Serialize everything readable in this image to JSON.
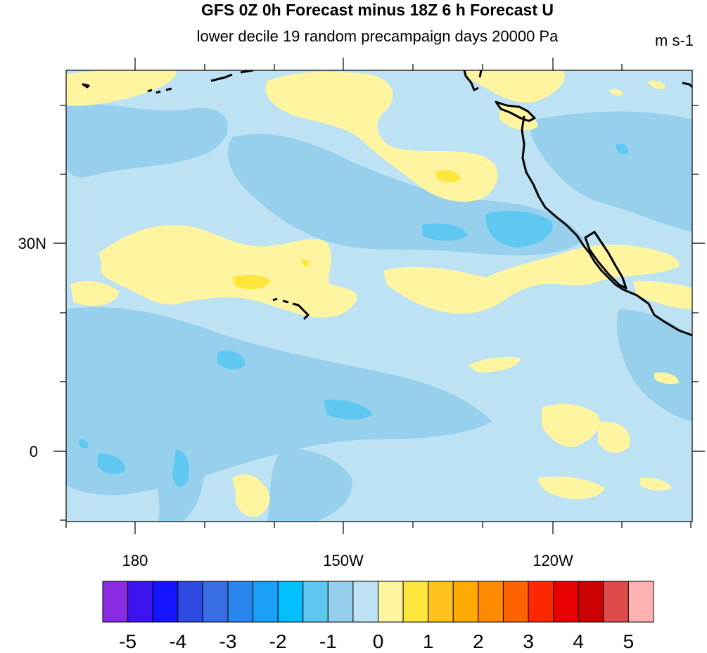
{
  "title": "GFS 0Z 0h Forecast minus 18Z 6 h Forecast U",
  "subtitle": "lower decile 19 random precampaign days 20000 Pa",
  "units": "m s-1",
  "map": {
    "lat_labels": [
      "30N",
      "0"
    ],
    "lon_labels": [
      "180",
      "150W",
      "120W"
    ]
  },
  "colorbar": {
    "labels": [
      "-5",
      "-4",
      "-3",
      "-2",
      "-1",
      "0",
      "1",
      "2",
      "3",
      "4",
      "5"
    ],
    "colors": [
      "#8a2be2",
      "#3c14f0",
      "#1414ff",
      "#2d4be1",
      "#3a6ee6",
      "#2a87f0",
      "#1ba0f7",
      "#00bfff",
      "#5ec8f0",
      "#96d0ec",
      "#bde2f3",
      "#fff5a0",
      "#ffe63c",
      "#ffc21e",
      "#ffaa00",
      "#ff8a00",
      "#ff6400",
      "#ff2800",
      "#e60000",
      "#cd0000",
      "#de4b4b",
      "#ffb0b0"
    ]
  },
  "colors": {
    "background": "#bde2f3",
    "mid_blue": "#96d0ec",
    "deep_blue": "#5ec8f0",
    "yellow": "#fff5a0",
    "coast": "#000000"
  }
}
